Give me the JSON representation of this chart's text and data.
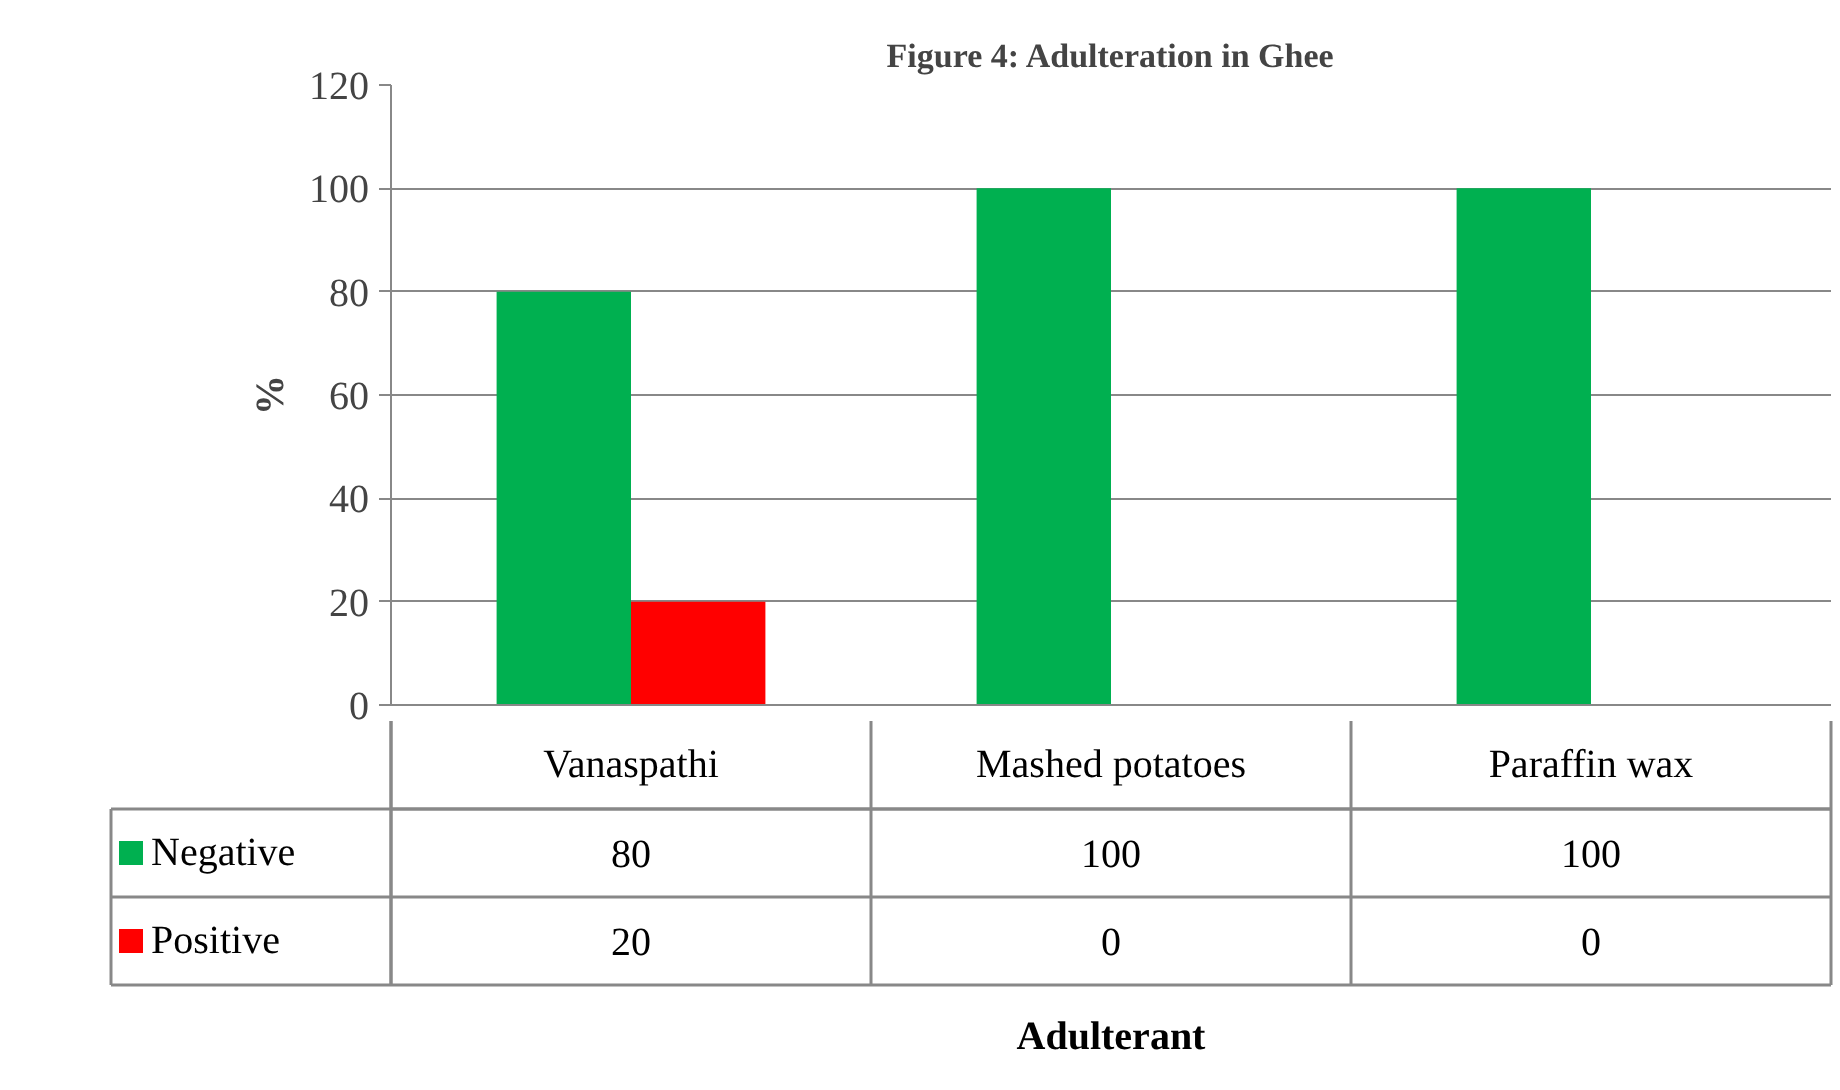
{
  "chart_data": {
    "type": "bar",
    "title": "Figure 4: Adulteration in Ghee",
    "annotations": [
      "Adulterant"
    ],
    "ylabel": "%",
    "categories": [
      "Vanaspathi",
      "Mashed potatoes",
      "Paraffin wax"
    ],
    "series": [
      {
        "name": "Negative",
        "color": "#00b050",
        "values": [
          80,
          100,
          100
        ]
      },
      {
        "name": "Positive",
        "color": "#ff0000",
        "values": [
          20,
          0,
          0
        ]
      }
    ],
    "ylim": [
      0,
      120
    ],
    "yticks": [
      0,
      20,
      40,
      60,
      80,
      100,
      120
    ],
    "grid": "y",
    "legend": "bottom",
    "data_labels": true
  }
}
